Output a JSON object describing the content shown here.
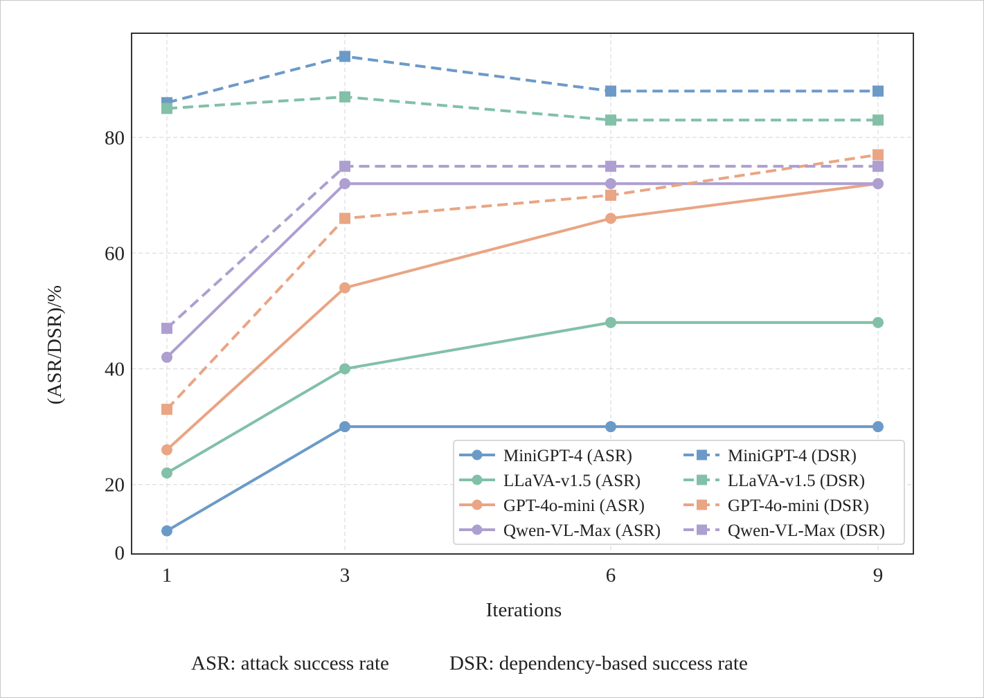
{
  "chart_data": {
    "type": "line",
    "title": "",
    "xlabel": "Iterations",
    "ylabel": "(ASR/DSR)/%",
    "x": [
      1,
      3,
      6,
      9
    ],
    "x_tick_labels": [
      "1",
      "3",
      "6",
      "9"
    ],
    "y_ticks": [
      20,
      40,
      60,
      80
    ],
    "y_tick_labels": [
      "20",
      "40",
      "60",
      "80"
    ],
    "y_bottom_label": "0",
    "ylim": [
      8,
      98
    ],
    "grid": true,
    "legend_position": "lower-right",
    "legend_columns": 2,
    "series": [
      {
        "name": "MiniGPT-4 (ASR)",
        "color": "#6b9ac8",
        "style": "solid",
        "marker": "circle",
        "values": [
          12,
          30,
          30,
          30
        ]
      },
      {
        "name": "LLaVA-v1.5 (ASR)",
        "color": "#82c0a8",
        "style": "solid",
        "marker": "circle",
        "values": [
          22,
          40,
          48,
          48
        ]
      },
      {
        "name": "GPT-4o-mini (ASR)",
        "color": "#e9a584",
        "style": "solid",
        "marker": "circle",
        "values": [
          26,
          54,
          66,
          72
        ]
      },
      {
        "name": "Qwen-VL-Max (ASR)",
        "color": "#ad9fd0",
        "style": "solid",
        "marker": "circle",
        "values": [
          42,
          72,
          72,
          72
        ]
      },
      {
        "name": "MiniGPT-4 (DSR)",
        "color": "#6b9ac8",
        "style": "dashed",
        "marker": "square",
        "values": [
          86,
          94,
          88,
          88
        ]
      },
      {
        "name": "LLaVA-v1.5 (DSR)",
        "color": "#82c0a8",
        "style": "dashed",
        "marker": "square",
        "values": [
          85,
          87,
          83,
          83
        ]
      },
      {
        "name": "GPT-4o-mini (DSR)",
        "color": "#e9a584",
        "style": "dashed",
        "marker": "square",
        "values": [
          33,
          66,
          70,
          77
        ]
      },
      {
        "name": "Qwen-VL-Max (DSR)",
        "color": "#ad9fd0",
        "style": "dashed",
        "marker": "square",
        "values": [
          47,
          75,
          75,
          75
        ]
      }
    ],
    "annotations": {
      "asr_note": "ASR: attack success rate",
      "dsr_note": "DSR: dependency-based success rate"
    }
  }
}
